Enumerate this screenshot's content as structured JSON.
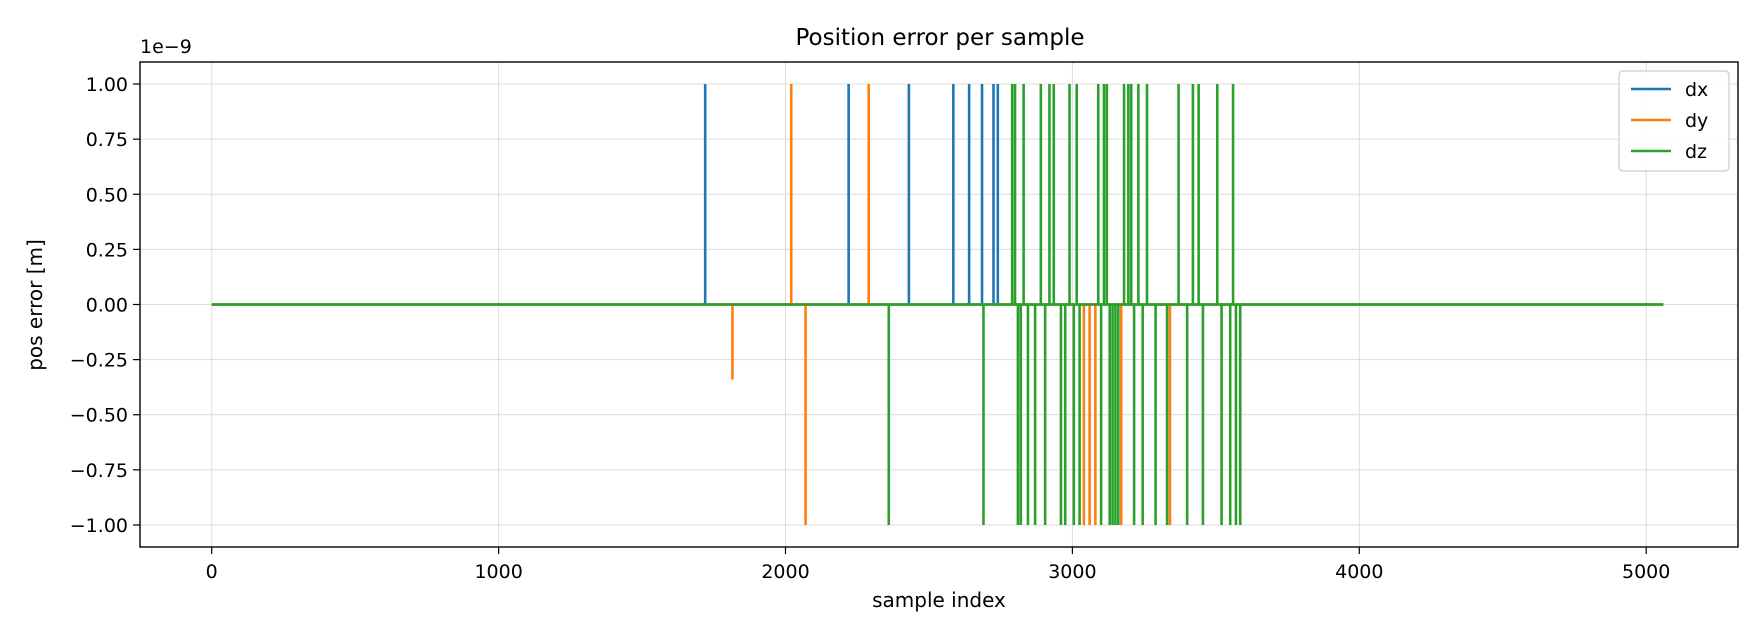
{
  "chart_data": {
    "type": "line",
    "title": "Position error per sample",
    "xlabel": "sample index",
    "ylabel": "pos error [m]",
    "y_scale_note": "1e−9",
    "xlim": [
      -250,
      5320
    ],
    "ylim": [
      -1.1,
      1.1
    ],
    "x_ticks": [
      0,
      1000,
      2000,
      3000,
      4000,
      5000
    ],
    "x_tick_labels": [
      "0",
      "1000",
      "2000",
      "3000",
      "4000",
      "5000"
    ],
    "y_ticks": [
      1.0,
      0.75,
      0.5,
      0.25,
      0.0,
      -0.25,
      -0.5,
      -0.75,
      -1.0
    ],
    "y_tick_labels": [
      "1.00",
      "0.75",
      "0.50",
      "0.25",
      "0.00",
      "−0.25",
      "−0.50",
      "−0.75",
      "−1.00"
    ],
    "x_range": [
      0,
      5060
    ],
    "grid": true,
    "legend_position": "top-right",
    "series": [
      {
        "name": "dx",
        "color": "#1f77b4",
        "spikes": [
          {
            "x": 1720,
            "y": 1.0
          },
          {
            "x": 2220,
            "y": 1.0
          },
          {
            "x": 2430,
            "y": 1.0
          },
          {
            "x": 2585,
            "y": 1.0
          },
          {
            "x": 2640,
            "y": 1.0
          },
          {
            "x": 2685,
            "y": 1.0
          },
          {
            "x": 2725,
            "y": 1.0
          },
          {
            "x": 2740,
            "y": 1.0
          }
        ]
      },
      {
        "name": "dy",
        "color": "#ff7f0e",
        "spikes": [
          {
            "x": 1815,
            "y": -0.34
          },
          {
            "x": 2020,
            "y": 1.0
          },
          {
            "x": 2070,
            "y": -1.0
          },
          {
            "x": 2290,
            "y": 1.0
          },
          {
            "x": 3040,
            "y": -1.0
          },
          {
            "x": 3060,
            "y": -1.0
          },
          {
            "x": 3080,
            "y": -1.0
          },
          {
            "x": 3170,
            "y": -1.0
          },
          {
            "x": 3340,
            "y": -1.0
          }
        ]
      },
      {
        "name": "dz",
        "color": "#2ca02c",
        "spikes": [
          {
            "x": 2360,
            "y": -1.0
          },
          {
            "x": 2690,
            "y": -1.0
          },
          {
            "x": 2790,
            "y": 1.0
          },
          {
            "x": 2800,
            "y": 1.0
          },
          {
            "x": 2810,
            "y": -1.0
          },
          {
            "x": 2820,
            "y": -1.0
          },
          {
            "x": 2830,
            "y": 1.0
          },
          {
            "x": 2845,
            "y": -1.0
          },
          {
            "x": 2870,
            "y": -1.0
          },
          {
            "x": 2890,
            "y": 1.0
          },
          {
            "x": 2905,
            "y": -1.0
          },
          {
            "x": 2920,
            "y": 1.0
          },
          {
            "x": 2935,
            "y": 1.0
          },
          {
            "x": 2960,
            "y": -1.0
          },
          {
            "x": 2975,
            "y": -1.0
          },
          {
            "x": 2990,
            "y": 1.0
          },
          {
            "x": 3005,
            "y": -1.0
          },
          {
            "x": 3015,
            "y": 1.0
          },
          {
            "x": 3025,
            "y": -1.0
          },
          {
            "x": 3090,
            "y": 1.0
          },
          {
            "x": 3100,
            "y": -1.0
          },
          {
            "x": 3110,
            "y": 1.0
          },
          {
            "x": 3120,
            "y": 1.0
          },
          {
            "x": 3130,
            "y": -1.0
          },
          {
            "x": 3140,
            "y": -1.0
          },
          {
            "x": 3150,
            "y": -1.0
          },
          {
            "x": 3160,
            "y": -1.0
          },
          {
            "x": 3180,
            "y": 1.0
          },
          {
            "x": 3195,
            "y": 1.0
          },
          {
            "x": 3205,
            "y": 1.0
          },
          {
            "x": 3215,
            "y": -1.0
          },
          {
            "x": 3230,
            "y": 1.0
          },
          {
            "x": 3245,
            "y": -1.0
          },
          {
            "x": 3260,
            "y": 1.0
          },
          {
            "x": 3290,
            "y": -1.0
          },
          {
            "x": 3330,
            "y": -1.0
          },
          {
            "x": 3370,
            "y": 1.0
          },
          {
            "x": 3400,
            "y": -1.0
          },
          {
            "x": 3420,
            "y": 1.0
          },
          {
            "x": 3440,
            "y": 1.0
          },
          {
            "x": 3455,
            "y": -1.0
          },
          {
            "x": 3505,
            "y": 1.0
          },
          {
            "x": 3520,
            "y": -1.0
          },
          {
            "x": 3550,
            "y": -1.0
          },
          {
            "x": 3560,
            "y": 1.0
          },
          {
            "x": 3570,
            "y": -1.0
          },
          {
            "x": 3585,
            "y": -1.0
          }
        ]
      }
    ]
  }
}
